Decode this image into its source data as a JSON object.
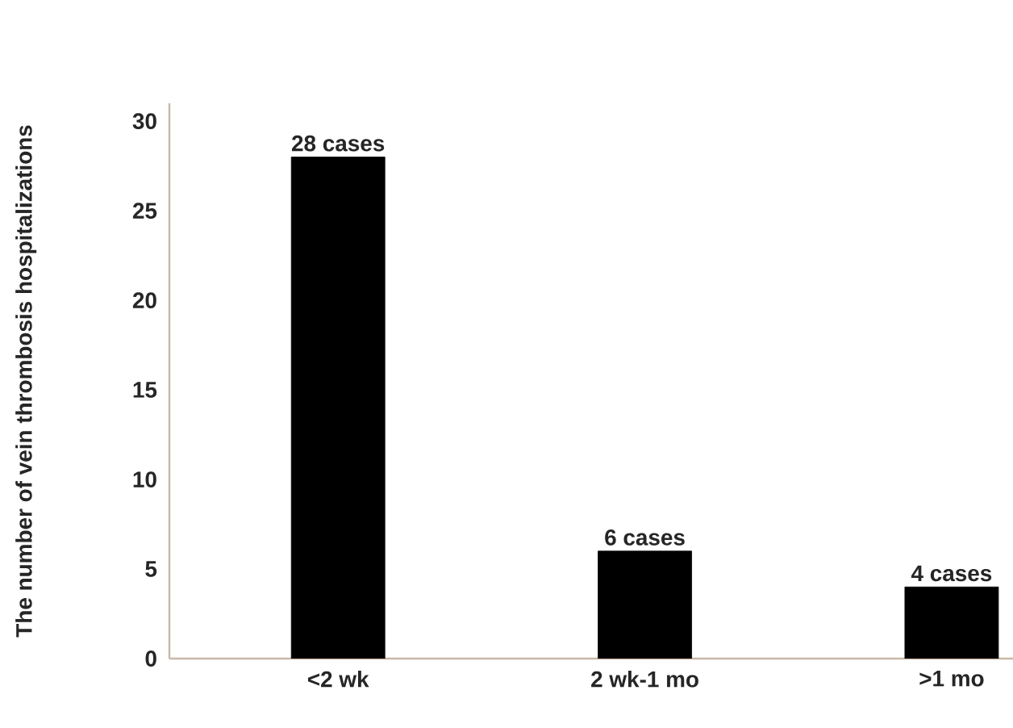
{
  "chart_data": {
    "type": "bar",
    "ylabel": "The number of vein thrombosis hospitalizations",
    "categories": [
      "<2 wk",
      "2 wk-1 mo",
      ">1 mo"
    ],
    "values": [
      28,
      6,
      4
    ],
    "value_labels": [
      "28 cases",
      "6 cases",
      "4 cases"
    ],
    "color": "#000000",
    "ylim": [
      0,
      31
    ],
    "yticks": [
      0,
      5,
      10,
      15,
      20,
      25,
      30
    ]
  }
}
